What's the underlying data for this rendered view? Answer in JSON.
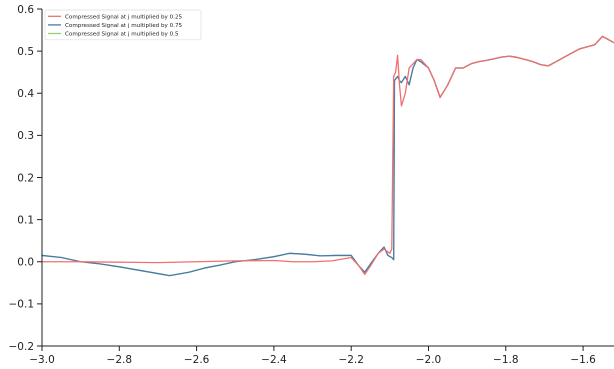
{
  "chart_data": {
    "type": "line",
    "title": "",
    "xlabel": "",
    "ylabel": "",
    "xlim": [
      -3.0,
      -1.52
    ],
    "ylim": [
      -0.2,
      0.6
    ],
    "grid": false,
    "legend_position": "top-left",
    "x_ticks": [
      -3.0,
      -2.8,
      -2.6,
      -2.4,
      -2.2,
      -2.0,
      -1.8,
      -1.6
    ],
    "x_tick_labels": [
      "−3.0",
      "−2.8",
      "−2.6",
      "−2.4",
      "−2.2",
      "−2.0",
      "−1.8",
      "−1.6"
    ],
    "y_ticks": [
      -0.2,
      -0.1,
      0.0,
      0.1,
      0.2,
      0.3,
      0.4,
      0.5,
      0.6
    ],
    "y_tick_labels": [
      "−0.2",
      "−0.1",
      "0.0",
      "0.1",
      "0.2",
      "0.3",
      "0.4",
      "0.5",
      "0.6"
    ],
    "series": [
      {
        "name": "Compressed Signal at j multiplied by 0.25",
        "color": "#f07070",
        "points": [
          [
            -3.0,
            0.0
          ],
          [
            -2.9,
            0.0
          ],
          [
            -2.8,
            -0.001
          ],
          [
            -2.7,
            -0.002
          ],
          [
            -2.6,
            0.0
          ],
          [
            -2.5,
            0.002
          ],
          [
            -2.4,
            0.003
          ],
          [
            -2.35,
            0.0
          ],
          [
            -2.3,
            0.0
          ],
          [
            -2.25,
            0.002
          ],
          [
            -2.2,
            0.01
          ],
          [
            -2.18,
            -0.01
          ],
          [
            -2.165,
            -0.03
          ],
          [
            -2.15,
            -0.01
          ],
          [
            -2.13,
            0.02
          ],
          [
            -2.115,
            0.03
          ],
          [
            -2.1,
            0.02
          ],
          [
            -2.095,
            0.03
          ],
          [
            -2.09,
            0.44
          ],
          [
            -2.085,
            0.45
          ],
          [
            -2.08,
            0.49
          ],
          [
            -2.075,
            0.42
          ],
          [
            -2.07,
            0.37
          ],
          [
            -2.06,
            0.4
          ],
          [
            -2.05,
            0.46
          ],
          [
            -2.04,
            0.47
          ],
          [
            -2.03,
            0.48
          ],
          [
            -2.02,
            0.48
          ],
          [
            -2.0,
            0.46
          ],
          [
            -1.985,
            0.43
          ],
          [
            -1.97,
            0.39
          ],
          [
            -1.95,
            0.42
          ],
          [
            -1.93,
            0.46
          ],
          [
            -1.91,
            0.46
          ],
          [
            -1.89,
            0.47
          ],
          [
            -1.87,
            0.475
          ],
          [
            -1.85,
            0.478
          ],
          [
            -1.83,
            0.482
          ],
          [
            -1.81,
            0.486
          ],
          [
            -1.79,
            0.488
          ],
          [
            -1.77,
            0.485
          ],
          [
            -1.75,
            0.48
          ],
          [
            -1.73,
            0.475
          ],
          [
            -1.71,
            0.468
          ],
          [
            -1.69,
            0.465
          ],
          [
            -1.67,
            0.475
          ],
          [
            -1.65,
            0.485
          ],
          [
            -1.63,
            0.495
          ],
          [
            -1.61,
            0.505
          ],
          [
            -1.59,
            0.51
          ],
          [
            -1.57,
            0.515
          ],
          [
            -1.55,
            0.535
          ],
          [
            -1.53,
            0.525
          ],
          [
            -1.52,
            0.52
          ]
        ]
      },
      {
        "name": "Compressed Signal at j multiplied by 0.75",
        "color": "#4a7ba7",
        "points": [
          [
            -3.0,
            0.015
          ],
          [
            -2.95,
            0.01
          ],
          [
            -2.9,
            0.0
          ],
          [
            -2.85,
            -0.005
          ],
          [
            -2.8,
            -0.012
          ],
          [
            -2.75,
            -0.02
          ],
          [
            -2.7,
            -0.028
          ],
          [
            -2.67,
            -0.033
          ],
          [
            -2.62,
            -0.025
          ],
          [
            -2.58,
            -0.015
          ],
          [
            -2.54,
            -0.008
          ],
          [
            -2.5,
            0.0
          ],
          [
            -2.45,
            0.005
          ],
          [
            -2.4,
            0.012
          ],
          [
            -2.36,
            0.02
          ],
          [
            -2.32,
            0.018
          ],
          [
            -2.28,
            0.014
          ],
          [
            -2.24,
            0.015
          ],
          [
            -2.2,
            0.015
          ],
          [
            -2.18,
            -0.01
          ],
          [
            -2.165,
            -0.025
          ],
          [
            -2.15,
            -0.005
          ],
          [
            -2.13,
            0.02
          ],
          [
            -2.115,
            0.035
          ],
          [
            -2.105,
            0.015
          ],
          [
            -2.095,
            0.01
          ],
          [
            -2.09,
            0.005
          ],
          [
            -2.088,
            0.43
          ],
          [
            -2.08,
            0.44
          ],
          [
            -2.075,
            0.43
          ],
          [
            -2.07,
            0.425
          ],
          [
            -2.06,
            0.44
          ],
          [
            -2.05,
            0.42
          ],
          [
            -2.04,
            0.46
          ],
          [
            -2.03,
            0.48
          ],
          [
            -2.02,
            0.475
          ],
          [
            -2.0,
            0.46
          ],
          [
            -1.985,
            0.43
          ],
          [
            -1.97,
            0.39
          ],
          [
            -1.95,
            0.42
          ],
          [
            -1.93,
            0.46
          ],
          [
            -1.91,
            0.46
          ],
          [
            -1.89,
            0.47
          ],
          [
            -1.87,
            0.475
          ],
          [
            -1.85,
            0.478
          ],
          [
            -1.83,
            0.482
          ],
          [
            -1.81,
            0.486
          ],
          [
            -1.79,
            0.488
          ],
          [
            -1.77,
            0.485
          ],
          [
            -1.75,
            0.48
          ],
          [
            -1.73,
            0.475
          ],
          [
            -1.71,
            0.468
          ],
          [
            -1.69,
            0.465
          ],
          [
            -1.67,
            0.475
          ],
          [
            -1.65,
            0.485
          ],
          [
            -1.63,
            0.495
          ],
          [
            -1.61,
            0.505
          ],
          [
            -1.59,
            0.51
          ],
          [
            -1.57,
            0.515
          ],
          [
            -1.55,
            0.535
          ],
          [
            -1.53,
            0.525
          ],
          [
            -1.52,
            0.52
          ]
        ]
      },
      {
        "name": "Compressed Signal at j multiplied by 0.5",
        "color": "#9acd7a",
        "points": [
          [
            -3.0,
            0.015
          ],
          [
            -2.95,
            0.01
          ],
          [
            -2.9,
            0.0
          ],
          [
            -2.85,
            -0.005
          ],
          [
            -2.8,
            -0.012
          ],
          [
            -2.75,
            -0.02
          ],
          [
            -2.7,
            -0.028
          ],
          [
            -2.67,
            -0.033
          ],
          [
            -2.62,
            -0.025
          ],
          [
            -2.58,
            -0.015
          ],
          [
            -2.54,
            -0.008
          ],
          [
            -2.5,
            0.0
          ],
          [
            -2.45,
            0.005
          ],
          [
            -2.4,
            0.012
          ],
          [
            -2.36,
            0.02
          ],
          [
            -2.32,
            0.018
          ],
          [
            -2.28,
            0.014
          ],
          [
            -2.24,
            0.015
          ],
          [
            -2.2,
            0.015
          ],
          [
            -2.18,
            -0.01
          ],
          [
            -2.165,
            -0.025
          ],
          [
            -2.15,
            -0.005
          ],
          [
            -2.13,
            0.02
          ],
          [
            -2.115,
            0.035
          ],
          [
            -2.105,
            0.015
          ],
          [
            -2.095,
            0.01
          ],
          [
            -2.09,
            0.005
          ],
          [
            -2.088,
            0.43
          ],
          [
            -2.08,
            0.44
          ],
          [
            -2.075,
            0.43
          ],
          [
            -2.07,
            0.425
          ],
          [
            -2.06,
            0.44
          ],
          [
            -2.05,
            0.42
          ],
          [
            -2.04,
            0.46
          ],
          [
            -2.03,
            0.48
          ],
          [
            -2.02,
            0.475
          ],
          [
            -2.0,
            0.46
          ],
          [
            -1.985,
            0.43
          ],
          [
            -1.97,
            0.39
          ],
          [
            -1.95,
            0.42
          ],
          [
            -1.93,
            0.46
          ],
          [
            -1.91,
            0.46
          ],
          [
            -1.89,
            0.47
          ],
          [
            -1.87,
            0.475
          ],
          [
            -1.85,
            0.478
          ],
          [
            -1.83,
            0.482
          ],
          [
            -1.81,
            0.486
          ],
          [
            -1.79,
            0.488
          ],
          [
            -1.77,
            0.485
          ],
          [
            -1.75,
            0.48
          ],
          [
            -1.73,
            0.475
          ],
          [
            -1.71,
            0.468
          ],
          [
            -1.69,
            0.465
          ],
          [
            -1.67,
            0.475
          ],
          [
            -1.65,
            0.485
          ],
          [
            -1.63,
            0.495
          ],
          [
            -1.61,
            0.505
          ],
          [
            -1.59,
            0.51
          ],
          [
            -1.57,
            0.515
          ],
          [
            -1.55,
            0.535
          ],
          [
            -1.53,
            0.525
          ],
          [
            -1.52,
            0.52
          ]
        ]
      }
    ]
  }
}
